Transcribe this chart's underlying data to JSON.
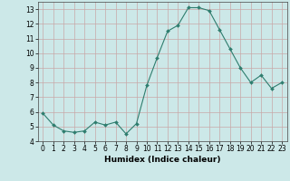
{
  "x": [
    0,
    1,
    2,
    3,
    4,
    5,
    6,
    7,
    8,
    9,
    10,
    11,
    12,
    13,
    14,
    15,
    16,
    17,
    18,
    19,
    20,
    21,
    22,
    23
  ],
  "y": [
    5.9,
    5.1,
    4.7,
    4.6,
    4.7,
    5.3,
    5.1,
    5.3,
    4.5,
    5.2,
    7.8,
    9.7,
    11.5,
    11.9,
    13.1,
    13.1,
    12.9,
    11.6,
    10.3,
    9.0,
    8.0,
    8.5,
    7.6,
    8.0
  ],
  "xlabel": "Humidex (Indice chaleur)",
  "xlim": [
    -0.5,
    23.5
  ],
  "ylim": [
    4,
    13.5
  ],
  "yticks": [
    4,
    5,
    6,
    7,
    8,
    9,
    10,
    11,
    12,
    13
  ],
  "xticks": [
    0,
    1,
    2,
    3,
    4,
    5,
    6,
    7,
    8,
    9,
    10,
    11,
    12,
    13,
    14,
    15,
    16,
    17,
    18,
    19,
    20,
    21,
    22,
    23
  ],
  "line_color": "#2e7d6e",
  "marker_color": "#2e7d6e",
  "bg_color": "#cce8e8",
  "grid_color_major": "#c8a8a8",
  "grid_color_minor": "#dcc8c8",
  "label_fontsize": 6.5,
  "tick_fontsize": 5.5
}
